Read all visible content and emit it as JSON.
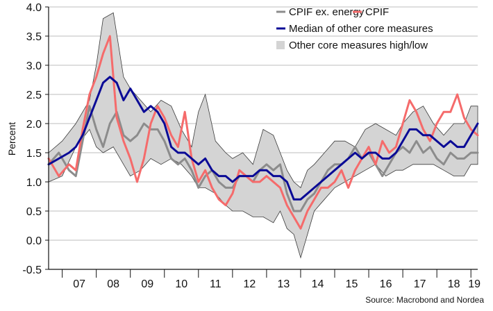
{
  "chart_data": {
    "type": "area",
    "ylabel": "Percent",
    "ylim": [
      -0.5,
      4.0
    ],
    "yticks": [
      "4.0",
      "3.5",
      "3.0",
      "2.5",
      "2.0",
      "1.5",
      "1.0",
      "0.5",
      "0.0",
      "-0.5"
    ],
    "xlim": [
      2006.6,
      2019.2
    ],
    "xticks": [
      {
        "label": "07",
        "value": 2007.5
      },
      {
        "label": "08",
        "value": 2008.5
      },
      {
        "label": "09",
        "value": 2009.5
      },
      {
        "label": "10",
        "value": 2010.5
      },
      {
        "label": "11",
        "value": 2011.5
      },
      {
        "label": "12",
        "value": 2012.5
      },
      {
        "label": "13",
        "value": 2013.5
      },
      {
        "label": "14",
        "value": 2014.5
      },
      {
        "label": "15",
        "value": 2015.5
      },
      {
        "label": "16",
        "value": 2016.5
      },
      {
        "label": "17",
        "value": 2017.5
      },
      {
        "label": "18",
        "value": 2018.5
      },
      {
        "label": "19",
        "value": 2019.1
      }
    ],
    "year_dividers": [
      2007,
      2008,
      2009,
      2010,
      2011,
      2012,
      2013,
      2014,
      2015,
      2016,
      2017,
      2018,
      2019
    ],
    "grid": true,
    "legend_position": "top-right",
    "band": {
      "name": "Other core measures high/low",
      "color": "#d4d4d4",
      "x": [
        2006.6,
        2007.0,
        2007.4,
        2007.8,
        2008.0,
        2008.2,
        2008.5,
        2008.8,
        2009.0,
        2009.3,
        2009.6,
        2009.9,
        2010.2,
        2010.5,
        2010.8,
        2011.0,
        2011.2,
        2011.5,
        2011.8,
        2012.0,
        2012.3,
        2012.6,
        2012.9,
        2013.2,
        2013.4,
        2013.6,
        2013.8,
        2014.0,
        2014.2,
        2014.4,
        2014.7,
        2015.0,
        2015.3,
        2015.6,
        2015.9,
        2016.2,
        2016.5,
        2016.8,
        2017.0,
        2017.3,
        2017.6,
        2017.9,
        2018.2,
        2018.5,
        2018.8,
        2019.0,
        2019.2
      ],
      "high": [
        1.5,
        1.7,
        2.0,
        2.4,
        3.0,
        3.8,
        3.9,
        2.8,
        2.6,
        2.4,
        2.2,
        2.4,
        2.3,
        1.9,
        1.6,
        2.2,
        2.5,
        1.7,
        1.5,
        1.4,
        1.5,
        1.3,
        1.9,
        1.8,
        1.5,
        1.2,
        1.0,
        0.9,
        1.2,
        1.3,
        1.5,
        1.7,
        1.7,
        1.6,
        1.9,
        2.0,
        1.9,
        1.8,
        2.0,
        2.2,
        2.3,
        2.0,
        1.8,
        2.0,
        2.0,
        2.3,
        2.3
      ],
      "low": [
        1.0,
        1.1,
        1.6,
        1.9,
        1.6,
        1.5,
        1.6,
        1.3,
        1.1,
        1.2,
        1.4,
        1.3,
        1.4,
        1.3,
        1.1,
        0.9,
        0.9,
        0.8,
        0.6,
        0.5,
        0.5,
        0.4,
        0.4,
        0.3,
        0.5,
        0.2,
        0.1,
        -0.3,
        0.1,
        0.5,
        0.7,
        0.9,
        1.0,
        1.1,
        1.2,
        1.3,
        1.1,
        1.2,
        1.2,
        1.3,
        1.3,
        1.3,
        1.2,
        1.1,
        1.1,
        1.3,
        1.3
      ]
    },
    "series": [
      {
        "name": "CPIF ex. energy",
        "color": "#8c8c8c",
        "width": 3,
        "x": [
          2006.6,
          2006.9,
          2007.2,
          2007.4,
          2007.6,
          2007.8,
          2008.0,
          2008.2,
          2008.4,
          2008.6,
          2008.8,
          2009.0,
          2009.2,
          2009.4,
          2009.6,
          2009.8,
          2010.0,
          2010.2,
          2010.4,
          2010.6,
          2010.8,
          2011.0,
          2011.2,
          2011.4,
          2011.6,
          2011.8,
          2012.0,
          2012.2,
          2012.4,
          2012.6,
          2012.8,
          2013.0,
          2013.2,
          2013.4,
          2013.6,
          2013.8,
          2014.0,
          2014.2,
          2014.4,
          2014.6,
          2014.8,
          2015.0,
          2015.2,
          2015.4,
          2015.6,
          2015.8,
          2016.0,
          2016.2,
          2016.4,
          2016.6,
          2016.8,
          2017.0,
          2017.2,
          2017.4,
          2017.6,
          2017.8,
          2018.0,
          2018.2,
          2018.4,
          2018.6,
          2018.8,
          2019.0,
          2019.2
        ],
        "y": [
          1.3,
          1.5,
          1.2,
          1.1,
          1.7,
          2.3,
          1.9,
          1.6,
          2.0,
          2.2,
          1.8,
          1.7,
          1.8,
          2.0,
          1.9,
          1.9,
          1.7,
          1.4,
          1.3,
          1.4,
          1.2,
          0.9,
          1.1,
          1.2,
          1.0,
          0.9,
          0.9,
          1.1,
          1.1,
          1.0,
          1.2,
          1.3,
          1.2,
          1.3,
          0.8,
          0.5,
          0.5,
          0.7,
          0.8,
          1.0,
          1.2,
          1.3,
          1.3,
          1.4,
          1.6,
          1.4,
          1.5,
          1.3,
          1.1,
          1.3,
          1.5,
          1.6,
          1.5,
          1.7,
          1.5,
          1.6,
          1.4,
          1.3,
          1.5,
          1.4,
          1.4,
          1.5,
          1.5
        ]
      },
      {
        "name": "CPIF",
        "color": "#f56b6b",
        "width": 3,
        "x": [
          2006.6,
          2006.9,
          2007.2,
          2007.4,
          2007.6,
          2007.8,
          2008.0,
          2008.2,
          2008.4,
          2008.6,
          2008.8,
          2009.0,
          2009.2,
          2009.4,
          2009.6,
          2009.8,
          2010.0,
          2010.2,
          2010.4,
          2010.6,
          2010.8,
          2011.0,
          2011.2,
          2011.4,
          2011.6,
          2011.8,
          2012.0,
          2012.2,
          2012.4,
          2012.6,
          2012.8,
          2013.0,
          2013.2,
          2013.4,
          2013.6,
          2013.8,
          2014.0,
          2014.2,
          2014.4,
          2014.6,
          2014.8,
          2015.0,
          2015.2,
          2015.4,
          2015.6,
          2015.8,
          2016.0,
          2016.2,
          2016.4,
          2016.6,
          2016.8,
          2017.0,
          2017.2,
          2017.4,
          2017.6,
          2017.8,
          2018.0,
          2018.2,
          2018.4,
          2018.6,
          2018.8,
          2019.0,
          2019.2
        ],
        "y": [
          1.4,
          1.1,
          1.3,
          1.2,
          1.9,
          2.5,
          2.8,
          3.2,
          3.5,
          2.1,
          1.7,
          1.4,
          1.0,
          1.4,
          2.0,
          2.3,
          2.1,
          1.8,
          1.6,
          2.2,
          1.4,
          1.0,
          1.2,
          0.9,
          0.7,
          0.6,
          0.8,
          1.2,
          1.1,
          1.0,
          1.0,
          1.1,
          1.0,
          0.9,
          0.6,
          0.4,
          0.2,
          0.5,
          0.7,
          0.9,
          0.9,
          1.0,
          1.2,
          0.9,
          1.2,
          1.4,
          1.6,
          1.3,
          1.7,
          1.5,
          1.6,
          2.0,
          2.4,
          2.2,
          1.9,
          1.7,
          2.0,
          2.2,
          2.2,
          2.5,
          2.1,
          1.9,
          1.8
        ]
      },
      {
        "name": "Median of other core measures",
        "color": "#0a0a96",
        "width": 3,
        "x": [
          2006.6,
          2006.9,
          2007.2,
          2007.4,
          2007.6,
          2007.8,
          2008.0,
          2008.2,
          2008.4,
          2008.6,
          2008.8,
          2009.0,
          2009.2,
          2009.4,
          2009.6,
          2009.8,
          2010.0,
          2010.2,
          2010.4,
          2010.6,
          2010.8,
          2011.0,
          2011.2,
          2011.4,
          2011.6,
          2011.8,
          2012.0,
          2012.2,
          2012.4,
          2012.6,
          2012.8,
          2013.0,
          2013.2,
          2013.4,
          2013.6,
          2013.8,
          2014.0,
          2014.2,
          2014.4,
          2014.6,
          2014.8,
          2015.0,
          2015.2,
          2015.4,
          2015.6,
          2015.8,
          2016.0,
          2016.2,
          2016.4,
          2016.6,
          2016.8,
          2017.0,
          2017.2,
          2017.4,
          2017.6,
          2017.8,
          2018.0,
          2018.2,
          2018.4,
          2018.6,
          2018.8,
          2019.0,
          2019.2
        ],
        "y": [
          1.3,
          1.4,
          1.5,
          1.6,
          1.8,
          2.1,
          2.4,
          2.7,
          2.8,
          2.7,
          2.4,
          2.6,
          2.4,
          2.2,
          2.3,
          2.2,
          2.0,
          1.6,
          1.5,
          1.5,
          1.4,
          1.3,
          1.4,
          1.2,
          1.1,
          1.1,
          1.0,
          1.1,
          1.1,
          1.1,
          1.2,
          1.2,
          1.1,
          1.1,
          1.0,
          0.7,
          0.7,
          0.8,
          0.9,
          1.0,
          1.1,
          1.2,
          1.3,
          1.4,
          1.5,
          1.4,
          1.5,
          1.5,
          1.4,
          1.4,
          1.5,
          1.7,
          1.9,
          1.9,
          1.8,
          1.8,
          1.7,
          1.6,
          1.7,
          1.6,
          1.6,
          1.8,
          2.0
        ]
      }
    ],
    "legend": [
      {
        "label": "CPIF ex. energy",
        "kind": "line",
        "color": "#8c8c8c"
      },
      {
        "label": "CPIF",
        "kind": "line",
        "color": "#f56b6b"
      },
      {
        "label": "Median of other core measures",
        "kind": "line",
        "color": "#0a0a96"
      },
      {
        "label": "Other core measures high/low",
        "kind": "box",
        "color": "#d4d4d4"
      }
    ],
    "source": "Source: Macrobond and Nordea"
  }
}
